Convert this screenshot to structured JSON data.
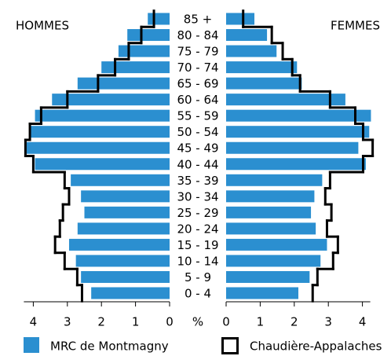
{
  "chart_data": {
    "type": "pyramid",
    "left_label": "HOMMES",
    "right_label": "FEMMES",
    "x_label": "%",
    "categories": [
      "85 +",
      "80 - 84",
      "75 - 79",
      "70 - 74",
      "65 - 69",
      "60 - 64",
      "55 - 59",
      "50 - 54",
      "45 - 49",
      "40 - 44",
      "35 - 39",
      "30 - 34",
      "25 - 29",
      "20 - 24",
      "15 - 19",
      "10 - 14",
      "5 - 9",
      "0 - 4"
    ],
    "xlim": [
      0,
      4
    ],
    "xticks": [
      0,
      1,
      2,
      3,
      4
    ],
    "series": [
      {
        "name": "MRC de Montmagny",
        "style": "bar",
        "color": "#2b8fd0",
        "men": [
          0.64,
          1.24,
          1.5,
          2.0,
          2.7,
          3.45,
          3.95,
          4.1,
          4.2,
          3.95,
          2.9,
          2.6,
          2.5,
          2.7,
          2.95,
          2.75,
          2.6,
          2.3
        ],
        "women": [
          0.83,
          1.2,
          1.48,
          2.08,
          2.22,
          3.5,
          4.25,
          4.2,
          3.88,
          4.1,
          2.82,
          2.59,
          2.49,
          2.63,
          2.96,
          2.77,
          2.45,
          2.12
        ]
      },
      {
        "name": "Chaudière-Appalaches",
        "style": "outline",
        "color": "#000000",
        "men": [
          0.46,
          0.83,
          1.2,
          1.6,
          2.1,
          3.0,
          3.77,
          4.1,
          4.23,
          4.0,
          3.08,
          2.95,
          3.13,
          3.22,
          3.36,
          3.08,
          2.71,
          2.57
        ],
        "women": [
          0.5,
          1.34,
          1.66,
          1.94,
          2.17,
          3.05,
          3.79,
          4.02,
          4.3,
          4.02,
          3.05,
          2.91,
          3.09,
          2.96,
          3.28,
          3.14,
          2.68,
          2.54
        ]
      }
    ]
  }
}
